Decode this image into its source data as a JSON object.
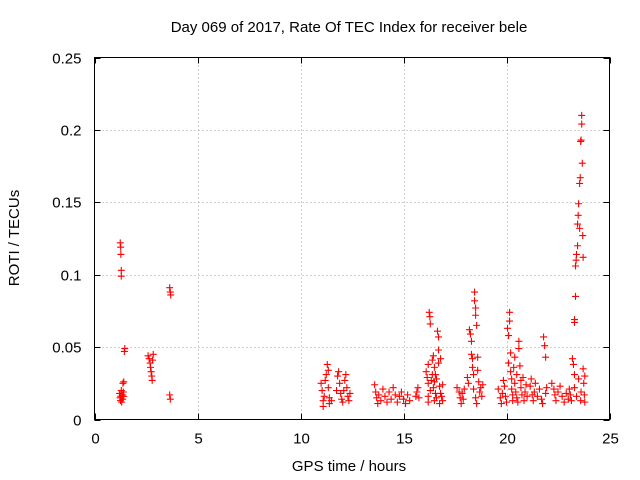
{
  "chart_data": {
    "type": "scatter",
    "title": "Day 069 of 2017, Rate Of TEC Index for receiver bele",
    "xlabel": "GPS time / hours",
    "ylabel": "ROTI / TECUs",
    "xlim": [
      0,
      25
    ],
    "ylim": [
      0,
      0.25
    ],
    "xticks": [
      0,
      5,
      10,
      15,
      20,
      25
    ],
    "xtick_labels": [
      "0",
      "5",
      "10",
      "15",
      "20",
      "25"
    ],
    "yticks": [
      0,
      0.05,
      0.1,
      0.15,
      0.2,
      0.25
    ],
    "ytick_labels": [
      "0",
      "0.05",
      "0.1",
      "0.15",
      "0.2",
      "0.25"
    ],
    "grid": true,
    "marker": "plus",
    "color": "#ff0000",
    "series": [
      {
        "values": [
          [
            1.25,
            0.122
          ],
          [
            1.27,
            0.119
          ],
          [
            1.28,
            0.114
          ],
          [
            1.3,
            0.103
          ],
          [
            1.3,
            0.099
          ],
          [
            1.22,
            0.018
          ],
          [
            1.24,
            0.015
          ],
          [
            1.26,
            0.013
          ],
          [
            1.28,
            0.016
          ],
          [
            1.3,
            0.02
          ],
          [
            1.32,
            0.012
          ],
          [
            1.35,
            0.017
          ],
          [
            1.37,
            0.014
          ],
          [
            1.4,
            0.019
          ],
          [
            1.42,
            0.016
          ],
          [
            1.38,
            0.025
          ],
          [
            1.42,
            0.026
          ],
          [
            1.45,
            0.047
          ],
          [
            1.47,
            0.049
          ],
          [
            2.6,
            0.044
          ],
          [
            2.65,
            0.042
          ],
          [
            2.7,
            0.039
          ],
          [
            2.72,
            0.036
          ],
          [
            2.75,
            0.033
          ],
          [
            2.78,
            0.03
          ],
          [
            2.8,
            0.027
          ],
          [
            2.82,
            0.041
          ],
          [
            2.85,
            0.045
          ],
          [
            3.65,
            0.091
          ],
          [
            3.68,
            0.088
          ],
          [
            3.7,
            0.086
          ],
          [
            3.65,
            0.017
          ],
          [
            3.68,
            0.014
          ],
          [
            11.0,
            0.025
          ],
          [
            11.05,
            0.02
          ],
          [
            11.1,
            0.013
          ],
          [
            11.1,
            0.009
          ],
          [
            11.15,
            0.016
          ],
          [
            11.2,
            0.027
          ],
          [
            11.25,
            0.031
          ],
          [
            11.3,
            0.038
          ],
          [
            11.35,
            0.034
          ],
          [
            11.35,
            0.022
          ],
          [
            11.4,
            0.015
          ],
          [
            11.4,
            0.011
          ],
          [
            11.5,
            0.013
          ],
          [
            11.75,
            0.02
          ],
          [
            11.8,
            0.03
          ],
          [
            11.85,
            0.033
          ],
          [
            11.9,
            0.025
          ],
          [
            11.95,
            0.018
          ],
          [
            12.0,
            0.014
          ],
          [
            12.05,
            0.012
          ],
          [
            12.1,
            0.02
          ],
          [
            12.15,
            0.027
          ],
          [
            12.2,
            0.031
          ],
          [
            12.25,
            0.022
          ],
          [
            12.3,
            0.016
          ],
          [
            12.35,
            0.013
          ],
          [
            12.4,
            0.018
          ],
          [
            13.6,
            0.024
          ],
          [
            13.65,
            0.019
          ],
          [
            13.7,
            0.015
          ],
          [
            13.75,
            0.011
          ],
          [
            13.8,
            0.017
          ],
          [
            13.9,
            0.013
          ],
          [
            14.0,
            0.021
          ],
          [
            14.1,
            0.016
          ],
          [
            14.2,
            0.012
          ],
          [
            14.3,
            0.019
          ],
          [
            14.4,
            0.014
          ],
          [
            14.5,
            0.022
          ],
          [
            14.6,
            0.017
          ],
          [
            14.7,
            0.012
          ],
          [
            14.8,
            0.016
          ],
          [
            14.9,
            0.019
          ],
          [
            15.0,
            0.014
          ],
          [
            15.1,
            0.011
          ],
          [
            15.2,
            0.017
          ],
          [
            15.3,
            0.013
          ],
          [
            15.6,
            0.016
          ],
          [
            15.65,
            0.019
          ],
          [
            15.7,
            0.022
          ],
          [
            15.75,
            0.015
          ],
          [
            16.1,
            0.033
          ],
          [
            16.15,
            0.029
          ],
          [
            16.2,
            0.038
          ],
          [
            16.2,
            0.025
          ],
          [
            16.2,
            0.016
          ],
          [
            16.2,
            0.012
          ],
          [
            16.25,
            0.074
          ],
          [
            16.28,
            0.071
          ],
          [
            16.3,
            0.066
          ],
          [
            16.3,
            0.02
          ],
          [
            16.35,
            0.027
          ],
          [
            16.4,
            0.041
          ],
          [
            16.4,
            0.031
          ],
          [
            16.45,
            0.044
          ],
          [
            16.45,
            0.022
          ],
          [
            16.5,
            0.036
          ],
          [
            16.5,
            0.026
          ],
          [
            16.5,
            0.013
          ],
          [
            16.55,
            0.031
          ],
          [
            16.55,
            0.018
          ],
          [
            16.6,
            0.028
          ],
          [
            16.6,
            0.015
          ],
          [
            16.65,
            0.061
          ],
          [
            16.7,
            0.057
          ],
          [
            16.7,
            0.048
          ],
          [
            16.7,
            0.039
          ],
          [
            16.75,
            0.023
          ],
          [
            16.75,
            0.011
          ],
          [
            16.8,
            0.018
          ],
          [
            16.8,
            0.042
          ],
          [
            16.85,
            0.016
          ],
          [
            16.9,
            0.013
          ],
          [
            16.9,
            0.024
          ],
          [
            17.6,
            0.022
          ],
          [
            17.7,
            0.019
          ],
          [
            17.75,
            0.015
          ],
          [
            17.8,
            0.011
          ],
          [
            17.85,
            0.018
          ],
          [
            17.9,
            0.014
          ],
          [
            17.95,
            0.021
          ],
          [
            18.1,
            0.029
          ],
          [
            18.15,
            0.025
          ],
          [
            18.2,
            0.062
          ],
          [
            18.25,
            0.059
          ],
          [
            18.3,
            0.054
          ],
          [
            18.3,
            0.045
          ],
          [
            18.35,
            0.042
          ],
          [
            18.35,
            0.036
          ],
          [
            18.4,
            0.031
          ],
          [
            18.4,
            0.021
          ],
          [
            18.45,
            0.088
          ],
          [
            18.45,
            0.082
          ],
          [
            18.5,
            0.077
          ],
          [
            18.5,
            0.072
          ],
          [
            18.55,
            0.065
          ],
          [
            18.5,
            0.015
          ],
          [
            18.55,
            0.011
          ],
          [
            18.6,
            0.043
          ],
          [
            18.6,
            0.034
          ],
          [
            18.65,
            0.026
          ],
          [
            18.7,
            0.019
          ],
          [
            18.75,
            0.022
          ],
          [
            18.8,
            0.016
          ],
          [
            18.85,
            0.024
          ],
          [
            19.6,
            0.021
          ],
          [
            19.7,
            0.015
          ],
          [
            19.75,
            0.011
          ],
          [
            19.8,
            0.018
          ],
          [
            19.85,
            0.027
          ],
          [
            19.9,
            0.023
          ],
          [
            19.95,
            0.016
          ],
          [
            20.0,
            0.012
          ],
          [
            20.05,
            0.063
          ],
          [
            20.1,
            0.058
          ],
          [
            20.1,
            0.039
          ],
          [
            20.15,
            0.074
          ],
          [
            20.15,
            0.068
          ],
          [
            20.2,
            0.046
          ],
          [
            20.2,
            0.033
          ],
          [
            20.25,
            0.028
          ],
          [
            20.25,
            0.021
          ],
          [
            20.3,
            0.017
          ],
          [
            20.3,
            0.013
          ],
          [
            20.35,
            0.036
          ],
          [
            20.4,
            0.043
          ],
          [
            20.4,
            0.025
          ],
          [
            20.45,
            0.019
          ],
          [
            20.5,
            0.031
          ],
          [
            20.5,
            0.015
          ],
          [
            20.55,
            0.012
          ],
          [
            20.6,
            0.054
          ],
          [
            20.6,
            0.049
          ],
          [
            20.65,
            0.037
          ],
          [
            20.7,
            0.027
          ],
          [
            20.7,
            0.022
          ],
          [
            20.75,
            0.017
          ],
          [
            20.8,
            0.029
          ],
          [
            20.85,
            0.013
          ],
          [
            20.9,
            0.019
          ],
          [
            20.95,
            0.024
          ],
          [
            21.0,
            0.016
          ],
          [
            21.15,
            0.023
          ],
          [
            21.2,
            0.028
          ],
          [
            21.25,
            0.017
          ],
          [
            21.3,
            0.013
          ],
          [
            21.35,
            0.019
          ],
          [
            21.4,
            0.025
          ],
          [
            21.5,
            0.016
          ],
          [
            21.6,
            0.021
          ],
          [
            21.7,
            0.014
          ],
          [
            21.75,
            0.011
          ],
          [
            21.8,
            0.057
          ],
          [
            21.85,
            0.051
          ],
          [
            21.9,
            0.043
          ],
          [
            21.9,
            0.018
          ],
          [
            21.95,
            0.022
          ],
          [
            22.2,
            0.025
          ],
          [
            22.3,
            0.021
          ],
          [
            22.35,
            0.017
          ],
          [
            22.4,
            0.013
          ],
          [
            22.5,
            0.019
          ],
          [
            22.6,
            0.023
          ],
          [
            22.7,
            0.016
          ],
          [
            22.8,
            0.012
          ],
          [
            22.9,
            0.018
          ],
          [
            23.0,
            0.014
          ],
          [
            23.05,
            0.021
          ],
          [
            23.1,
            0.017
          ],
          [
            23.15,
            0.013
          ],
          [
            23.2,
            0.042
          ],
          [
            23.25,
            0.038
          ],
          [
            23.3,
            0.069
          ],
          [
            23.3,
            0.067
          ],
          [
            23.3,
            0.031
          ],
          [
            23.3,
            0.022
          ],
          [
            23.35,
            0.085
          ],
          [
            23.35,
            0.106
          ],
          [
            23.38,
            0.11
          ],
          [
            23.4,
            0.114
          ],
          [
            23.4,
            0.016
          ],
          [
            23.45,
            0.12
          ],
          [
            23.45,
            0.135
          ],
          [
            23.48,
            0.141
          ],
          [
            23.5,
            0.149
          ],
          [
            23.5,
            0.028
          ],
          [
            23.55,
            0.132
          ],
          [
            23.55,
            0.163
          ],
          [
            23.58,
            0.167
          ],
          [
            23.6,
            0.192
          ],
          [
            23.6,
            0.013
          ],
          [
            23.62,
            0.193
          ],
          [
            23.62,
            0.019
          ],
          [
            23.65,
            0.204
          ],
          [
            23.65,
            0.21
          ],
          [
            23.68,
            0.177
          ],
          [
            23.7,
            0.127
          ],
          [
            23.72,
            0.112
          ],
          [
            23.72,
            0.035
          ],
          [
            23.75,
            0.025
          ],
          [
            23.78,
            0.017
          ],
          [
            23.8,
            0.03
          ],
          [
            23.8,
            0.012
          ]
        ]
      }
    ]
  }
}
